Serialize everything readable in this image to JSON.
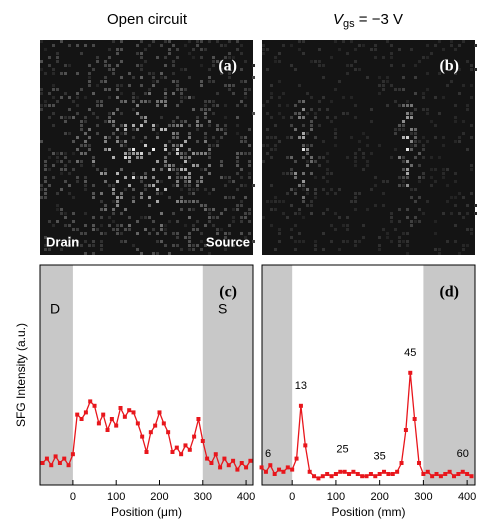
{
  "images": [
    {
      "title": "Open circuit",
      "label": "(a)",
      "corner_labels": [
        "Drain",
        "Source"
      ]
    },
    {
      "title_parts": [
        "V",
        "gs",
        " = −3 V"
      ],
      "label": "(b)"
    }
  ],
  "chart_data": [
    {
      "type": "line",
      "label": "(c)",
      "ylabel": "SFG Intensity (a.u.)",
      "xlabel": "Position (μm)",
      "xlim": [
        -76,
        416
      ],
      "xticks": [
        0,
        100,
        200,
        300,
        400
      ],
      "ylim": [
        0,
        100
      ],
      "shaded_regions": [
        [
          -76,
          0
        ],
        [
          300,
          416
        ]
      ],
      "region_labels": [
        "D",
        "S"
      ],
      "color": "#e8161c",
      "x": [
        -70,
        -60,
        -50,
        -40,
        -30,
        -20,
        -10,
        0,
        10,
        20,
        30,
        40,
        50,
        60,
        70,
        80,
        90,
        100,
        110,
        120,
        130,
        140,
        150,
        160,
        170,
        180,
        190,
        200,
        210,
        220,
        230,
        240,
        250,
        260,
        270,
        280,
        290,
        300,
        310,
        320,
        330,
        340,
        350,
        360,
        370,
        380,
        390,
        400,
        410
      ],
      "values": [
        10,
        12,
        9,
        13,
        10,
        12,
        9,
        14,
        32,
        30,
        33,
        38,
        36,
        28,
        32,
        25,
        30,
        27,
        35,
        31,
        34,
        33,
        28,
        22,
        15,
        24,
        27,
        33,
        28,
        24,
        15,
        17,
        14,
        18,
        16,
        22,
        30,
        20,
        12,
        10,
        14,
        8,
        12,
        9,
        11,
        7,
        10,
        8,
        11
      ]
    },
    {
      "type": "line",
      "label": "(d)",
      "xlabel": "Position (mm)",
      "xlim": [
        -69,
        418
      ],
      "xticks": [
        0,
        100,
        200,
        300,
        400
      ],
      "ylim": [
        0,
        100
      ],
      "shaded_regions": [
        [
          -69,
          0
        ],
        [
          300,
          418
        ]
      ],
      "color": "#e8161c",
      "x": [
        -70,
        -60,
        -50,
        -40,
        -30,
        -20,
        -10,
        0,
        10,
        20,
        30,
        40,
        50,
        60,
        70,
        80,
        90,
        100,
        110,
        120,
        130,
        140,
        150,
        160,
        170,
        180,
        190,
        200,
        210,
        220,
        230,
        240,
        250,
        260,
        270,
        280,
        290,
        300,
        310,
        320,
        330,
        340,
        350,
        360,
        370,
        380,
        390,
        400,
        410
      ],
      "values": [
        8,
        6,
        9,
        5,
        7,
        6,
        8,
        7,
        12,
        36,
        18,
        6,
        4,
        3,
        4,
        5,
        4,
        5,
        6,
        6,
        5,
        6,
        5,
        4,
        4,
        5,
        4,
        5,
        6,
        5,
        5,
        6,
        10,
        25,
        51,
        30,
        10,
        5,
        6,
        4,
        5,
        4,
        5,
        6,
        4,
        5,
        6,
        5,
        4
      ],
      "annotations": [
        {
          "text": "6",
          "x": -55,
          "y": 14
        },
        {
          "text": "13",
          "x": 20,
          "y": 45
        },
        {
          "text": "25",
          "x": 115,
          "y": 16
        },
        {
          "text": "35",
          "x": 200,
          "y": 13
        },
        {
          "text": "45",
          "x": 270,
          "y": 60
        },
        {
          "text": "60",
          "x": 390,
          "y": 14
        }
      ]
    }
  ]
}
